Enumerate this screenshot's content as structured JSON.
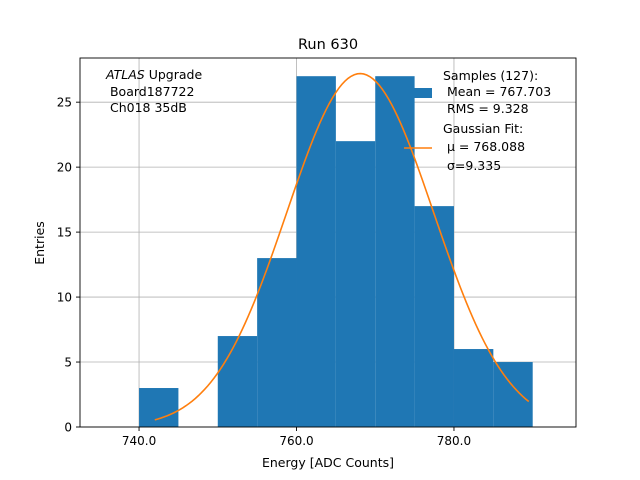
{
  "chart_data": {
    "type": "bar",
    "title": "Run 630",
    "xlabel": "Energy [ADC Counts]",
    "ylabel": "Entries",
    "xlim": [
      732.5,
      795.5
    ],
    "ylim": [
      0,
      28.4
    ],
    "grid": true,
    "x_ticks": [
      740,
      760,
      780
    ],
    "x_tick_labels": [
      "740.0",
      "760.0",
      "780.0"
    ],
    "y_ticks": [
      0,
      5,
      10,
      15,
      20,
      25
    ],
    "y_tick_labels": [
      "0",
      "5",
      "10",
      "15",
      "20",
      "25"
    ],
    "bin_edges": [
      740,
      745,
      750,
      755,
      760,
      765,
      770,
      775,
      780,
      785,
      790
    ],
    "counts": [
      3,
      0,
      7,
      13,
      27,
      22,
      27,
      17,
      6,
      5
    ],
    "fit": {
      "mu": 768.088,
      "sigma": 9.335,
      "amplitude": 27.2,
      "x_range": [
        742,
        789.5
      ]
    },
    "annotation": {
      "prefix": "ATLAS",
      "suffix": " Upgrade",
      "lines": [
        " Board187722",
        " Ch018 35dB"
      ]
    },
    "legend": {
      "position": "upper right",
      "entries": [
        {
          "label_lines": [
            "Samples (127):",
            " Mean = 767.703",
            " RMS = 9.328"
          ]
        },
        {
          "label_lines": [
            "Gaussian Fit:",
            " μ = 768.088",
            " σ=9.335"
          ]
        }
      ]
    },
    "colors": {
      "bars": "#1f77b4",
      "fit": "#ff7f0e",
      "grid": "#b0b0b0"
    }
  }
}
